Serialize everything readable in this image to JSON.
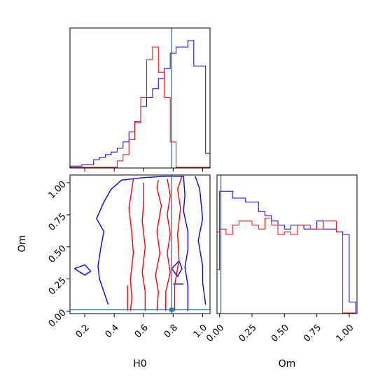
{
  "chart_data": {
    "type": "corner",
    "colors": {
      "series_a": "#0000ff",
      "series_b": "#ff0000",
      "truth": "#1f77b4",
      "frame": "#000000"
    },
    "parameters": [
      {
        "label": "H0",
        "range": [
          0.1,
          1.05
        ],
        "ticks": [
          "0.2",
          "0.4",
          "0.6",
          "0.8",
          "1.0"
        ],
        "tick_values": [
          0.2,
          0.4,
          0.6,
          0.8,
          1.0
        ]
      },
      {
        "label": "Om",
        "range": [
          -0.02,
          1.06
        ],
        "ticks": [
          "0.00",
          "0.25",
          "0.50",
          "0.75",
          "1.00"
        ],
        "tick_values": [
          0.0,
          0.25,
          0.5,
          0.75,
          1.0
        ]
      }
    ],
    "truth": {
      "H0": 0.79,
      "Om": 0.01
    },
    "histograms": {
      "H0": {
        "bin_edges": [
          0.1,
          0.14,
          0.18,
          0.22,
          0.26,
          0.3,
          0.34,
          0.38,
          0.42,
          0.46,
          0.5,
          0.54,
          0.58,
          0.62,
          0.66,
          0.7,
          0.74,
          0.78,
          0.82,
          0.86,
          0.9,
          0.94,
          0.98,
          1.02,
          1.05
        ],
        "series_a": [
          0.01,
          0.01,
          0.02,
          0.02,
          0.06,
          0.08,
          0.1,
          0.12,
          0.15,
          0.2,
          0.28,
          0.36,
          0.48,
          0.55,
          0.62,
          0.7,
          0.78,
          0.9,
          0.95,
          0.95,
          1.0,
          0.8,
          0.8,
          0.11
        ],
        "series_b": [
          0,
          0,
          0,
          0,
          0,
          0,
          0,
          0,
          0.05,
          0.1,
          0.22,
          0.35,
          0.55,
          0.85,
          0.95,
          0.75,
          0.55,
          0.2,
          0,
          0,
          0,
          0,
          0,
          0
        ]
      },
      "Om": {
        "bin_edges": [
          -0.02,
          0.0,
          0.05,
          0.1,
          0.15,
          0.2,
          0.25,
          0.3,
          0.35,
          0.4,
          0.45,
          0.5,
          0.55,
          0.6,
          0.65,
          0.7,
          0.75,
          0.8,
          0.85,
          0.9,
          0.95,
          1.0,
          1.05
        ],
        "series_a": [
          0.32,
          0.9,
          0.9,
          0.85,
          0.85,
          0.82,
          0.82,
          0.75,
          0.72,
          0.68,
          0.65,
          0.62,
          0.65,
          0.65,
          0.62,
          0.62,
          0.68,
          0.62,
          0.62,
          0.6,
          0.58,
          0.08
        ],
        "series_b": [
          0.6,
          0.62,
          0.58,
          0.65,
          0.68,
          0.68,
          0.65,
          0.62,
          0.7,
          0.65,
          0.58,
          0.6,
          0.58,
          0.65,
          0.65,
          0.62,
          0.62,
          0.68,
          0.68,
          0.6,
          0.0,
          0.0
        ]
      }
    },
    "contours_2d": {
      "series_a": [
        [
          [
            0.36,
            0.05
          ],
          [
            0.33,
            0.15
          ],
          [
            0.3,
            0.25
          ],
          [
            0.29,
            0.35
          ],
          [
            0.31,
            0.5
          ],
          [
            0.33,
            0.62
          ],
          [
            0.28,
            0.72
          ],
          [
            0.33,
            0.85
          ],
          [
            0.38,
            0.95
          ],
          [
            0.45,
            1.02
          ],
          [
            0.6,
            1.04
          ],
          [
            0.75,
            1.05
          ],
          [
            0.87,
            1.05
          ],
          [
            0.88,
            0.9
          ],
          [
            0.87,
            0.78
          ],
          [
            0.9,
            0.62
          ],
          [
            0.9,
            0.48
          ],
          [
            0.88,
            0.34
          ],
          [
            0.9,
            0.2
          ],
          [
            0.9,
            0.0
          ]
        ],
        [
          [
            0.95,
            1.05
          ],
          [
            0.98,
            0.95
          ],
          [
            1.0,
            0.72
          ],
          [
            0.97,
            0.55
          ],
          [
            1.0,
            0.35
          ],
          [
            1.0,
            0.22
          ],
          [
            1.02,
            0.05
          ]
        ],
        [
          [
            0.13,
            0.33
          ],
          [
            0.2,
            0.28
          ],
          [
            0.24,
            0.31
          ],
          [
            0.2,
            0.36
          ],
          [
            0.13,
            0.33
          ]
        ],
        [
          [
            0.84,
            0.39
          ],
          [
            0.79,
            0.33
          ],
          [
            0.83,
            0.27
          ],
          [
            0.86,
            0.33
          ],
          [
            0.84,
            0.39
          ]
        ],
        [
          [
            0.8,
            0.21
          ],
          [
            0.87,
            0.21
          ]
        ]
      ],
      "series_b": [
        [
          [
            0.51,
            0.0
          ],
          [
            0.52,
            0.1
          ],
          [
            0.51,
            0.25
          ],
          [
            0.53,
            0.45
          ],
          [
            0.52,
            0.6
          ],
          [
            0.5,
            0.8
          ],
          [
            0.52,
            0.95
          ],
          [
            0.53,
            1.03
          ]
        ],
        [
          [
            0.69,
            0.0
          ],
          [
            0.7,
            0.15
          ],
          [
            0.68,
            0.28
          ],
          [
            0.71,
            0.45
          ],
          [
            0.69,
            0.62
          ],
          [
            0.72,
            0.82
          ],
          [
            0.69,
            0.96
          ],
          [
            0.7,
            1.02
          ]
        ],
        [
          [
            0.75,
            0.0
          ],
          [
            0.75,
            0.15
          ],
          [
            0.78,
            0.3
          ],
          [
            0.76,
            0.45
          ],
          [
            0.78,
            0.6
          ],
          [
            0.76,
            0.75
          ],
          [
            0.78,
            0.9
          ],
          [
            0.76,
            1.03
          ]
        ],
        [
          [
            0.81,
            0.0
          ],
          [
            0.81,
            0.2
          ],
          [
            0.84,
            0.4
          ],
          [
            0.83,
            0.6
          ],
          [
            0.85,
            0.8
          ],
          [
            0.83,
            0.95
          ],
          [
            0.86,
            1.05
          ]
        ],
        [
          [
            0.61,
            0.0
          ],
          [
            0.61,
            0.15
          ],
          [
            0.59,
            0.3
          ],
          [
            0.61,
            0.5
          ],
          [
            0.59,
            0.7
          ],
          [
            0.6,
            0.85
          ],
          [
            0.6,
            1.0
          ]
        ],
        [
          [
            0.49,
            0.0
          ],
          [
            0.49,
            0.2
          ]
        ]
      ]
    }
  }
}
